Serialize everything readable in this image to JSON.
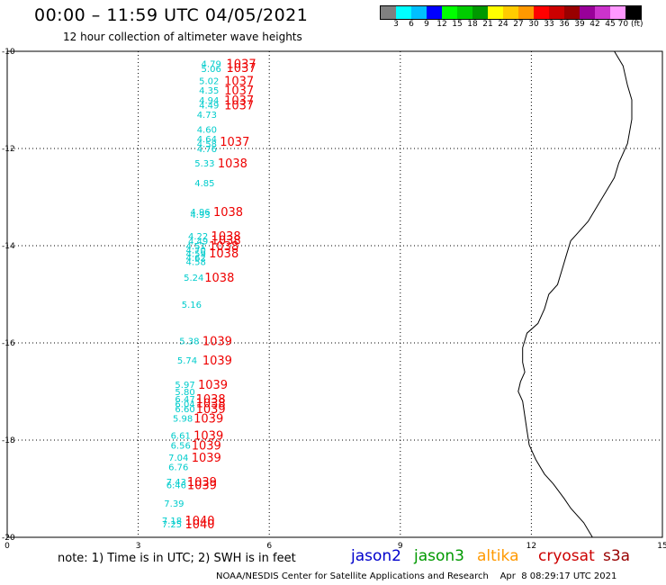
{
  "header": {
    "title": "00:00 – 11:59 UTC 04/05/2021",
    "subtitle": "12 hour collection of altimeter wave heights"
  },
  "colorbar": {
    "colors": [
      "#808080",
      "#00ffff",
      "#00bfff",
      "#0000ff",
      "#00ff00",
      "#00cc00",
      "#009900",
      "#ffff00",
      "#ffcc00",
      "#ff9900",
      "#ff0000",
      "#cc0000",
      "#990000",
      "#990099",
      "#cc33cc",
      "#ff99ff",
      "#000000"
    ],
    "labels": [
      "3",
      "6",
      "9",
      "12",
      "15",
      "18",
      "21",
      "24",
      "27",
      "30",
      "33",
      "36",
      "39",
      "42",
      "45",
      "70 (ft)"
    ]
  },
  "map": {
    "x_ticks": [
      "0",
      "3",
      "6",
      "9",
      "12",
      "15"
    ],
    "y_ticks": [
      "-10",
      "-12",
      "-14",
      "-16",
      "-18",
      "-20"
    ]
  },
  "chart_data": {
    "type": "scatter",
    "x_range": [
      0,
      15
    ],
    "y_range": [
      -20,
      -10
    ],
    "grid": true,
    "swh_labels": [
      {
        "x": 4.9,
        "y": -10.25,
        "text": "4.79"
      },
      {
        "x": 4.9,
        "y": -10.35,
        "text": "5.06"
      },
      {
        "x": 4.85,
        "y": -10.6,
        "text": "5.02"
      },
      {
        "x": 4.85,
        "y": -10.8,
        "text": "4.35"
      },
      {
        "x": 4.85,
        "y": -11.0,
        "text": "4.94"
      },
      {
        "x": 4.85,
        "y": -11.1,
        "text": "4.49"
      },
      {
        "x": 4.8,
        "y": -11.3,
        "text": "4.73"
      },
      {
        "x": 4.8,
        "y": -11.6,
        "text": "4.60"
      },
      {
        "x": 4.8,
        "y": -11.8,
        "text": "4.64"
      },
      {
        "x": 4.8,
        "y": -11.9,
        "text": "4.58"
      },
      {
        "x": 4.8,
        "y": -12.0,
        "text": "4.76"
      },
      {
        "x": 4.75,
        "y": -12.3,
        "text": "5.33"
      },
      {
        "x": 4.75,
        "y": -12.7,
        "text": "4.85"
      },
      {
        "x": 4.65,
        "y": -13.3,
        "text": "4.96"
      },
      {
        "x": 4.65,
        "y": -13.35,
        "text": "4.93"
      },
      {
        "x": 4.6,
        "y": -13.8,
        "text": "4.22"
      },
      {
        "x": 4.6,
        "y": -13.9,
        "text": "4.49"
      },
      {
        "x": 4.55,
        "y": -14.0,
        "text": "4.51"
      },
      {
        "x": 4.55,
        "y": -14.08,
        "text": "4.70"
      },
      {
        "x": 4.55,
        "y": -14.16,
        "text": "4.59"
      },
      {
        "x": 4.55,
        "y": -14.24,
        "text": "4.62"
      },
      {
        "x": 4.55,
        "y": -14.32,
        "text": "4.58"
      },
      {
        "x": 4.5,
        "y": -14.65,
        "text": "5.24"
      },
      {
        "x": 4.45,
        "y": -15.2,
        "text": "5.16"
      },
      {
        "x": 4.4,
        "y": -15.95,
        "text": "5.38"
      },
      {
        "x": 4.35,
        "y": -16.35,
        "text": "5.74"
      },
      {
        "x": 4.3,
        "y": -16.85,
        "text": "5.97"
      },
      {
        "x": 4.3,
        "y": -17.0,
        "text": "5.80"
      },
      {
        "x": 4.3,
        "y": -17.15,
        "text": "6.47"
      },
      {
        "x": 4.3,
        "y": -17.25,
        "text": "6.04"
      },
      {
        "x": 4.3,
        "y": -17.35,
        "text": "6.60"
      },
      {
        "x": 4.25,
        "y": -17.55,
        "text": "5.98"
      },
      {
        "x": 4.2,
        "y": -17.9,
        "text": "6.61"
      },
      {
        "x": 4.2,
        "y": -18.1,
        "text": "6.56"
      },
      {
        "x": 4.15,
        "y": -18.35,
        "text": "7.04"
      },
      {
        "x": 4.15,
        "y": -18.55,
        "text": "6.76"
      },
      {
        "x": 4.1,
        "y": -18.85,
        "text": "7.43"
      },
      {
        "x": 4.1,
        "y": -18.92,
        "text": "6.46"
      },
      {
        "x": 4.05,
        "y": -19.3,
        "text": "7.39"
      },
      {
        "x": 4.0,
        "y": -19.65,
        "text": "7.18"
      },
      {
        "x": 4.0,
        "y": -19.72,
        "text": "7.25"
      }
    ],
    "pressure_labels": [
      {
        "x": 5.7,
        "y": -10.25,
        "text": "1037"
      },
      {
        "x": 5.7,
        "y": -10.33,
        "text": "1037"
      },
      {
        "x": 5.65,
        "y": -10.6,
        "text": "1037"
      },
      {
        "x": 5.65,
        "y": -10.8,
        "text": "1037"
      },
      {
        "x": 5.65,
        "y": -11.0,
        "text": "1037"
      },
      {
        "x": 5.65,
        "y": -11.1,
        "text": "1037"
      },
      {
        "x": 5.55,
        "y": -11.85,
        "text": "1037"
      },
      {
        "x": 5.5,
        "y": -12.3,
        "text": "1038"
      },
      {
        "x": 5.4,
        "y": -13.3,
        "text": "1038"
      },
      {
        "x": 5.35,
        "y": -13.8,
        "text": "1038"
      },
      {
        "x": 5.35,
        "y": -13.88,
        "text": "1038"
      },
      {
        "x": 5.3,
        "y": -14.0,
        "text": "1038"
      },
      {
        "x": 5.3,
        "y": -14.15,
        "text": "1038"
      },
      {
        "x": 5.2,
        "y": -14.65,
        "text": "1038"
      },
      {
        "x": 5.15,
        "y": -15.95,
        "text": "1039"
      },
      {
        "x": 5.15,
        "y": -16.35,
        "text": "1039"
      },
      {
        "x": 5.05,
        "y": -16.85,
        "text": "1039"
      },
      {
        "x": 5.0,
        "y": -17.15,
        "text": "1038"
      },
      {
        "x": 5.0,
        "y": -17.23,
        "text": "1038"
      },
      {
        "x": 5.0,
        "y": -17.35,
        "text": "1039"
      },
      {
        "x": 4.95,
        "y": -17.55,
        "text": "1039"
      },
      {
        "x": 4.95,
        "y": -17.9,
        "text": "1039"
      },
      {
        "x": 4.9,
        "y": -18.1,
        "text": "1039"
      },
      {
        "x": 4.9,
        "y": -18.35,
        "text": "1039"
      },
      {
        "x": 4.8,
        "y": -18.85,
        "text": "1039"
      },
      {
        "x": 4.8,
        "y": -18.92,
        "text": "1039"
      },
      {
        "x": 4.75,
        "y": -19.65,
        "text": "1040"
      },
      {
        "x": 4.75,
        "y": -19.72,
        "text": "1040"
      }
    ],
    "coastline": [
      [
        13.9,
        -10.0
      ],
      [
        14.1,
        -10.3
      ],
      [
        14.2,
        -10.7
      ],
      [
        14.3,
        -11.0
      ],
      [
        14.3,
        -11.4
      ],
      [
        14.2,
        -11.9
      ],
      [
        14.0,
        -12.3
      ],
      [
        13.9,
        -12.6
      ],
      [
        13.7,
        -12.9
      ],
      [
        13.5,
        -13.2
      ],
      [
        13.3,
        -13.5
      ],
      [
        13.1,
        -13.7
      ],
      [
        12.9,
        -13.9
      ],
      [
        12.8,
        -14.2
      ],
      [
        12.7,
        -14.5
      ],
      [
        12.6,
        -14.8
      ],
      [
        12.4,
        -15.0
      ],
      [
        12.3,
        -15.3
      ],
      [
        12.15,
        -15.6
      ],
      [
        11.9,
        -15.8
      ],
      [
        11.8,
        -16.1
      ],
      [
        11.8,
        -16.4
      ],
      [
        11.85,
        -16.6
      ],
      [
        11.75,
        -16.8
      ],
      [
        11.7,
        -17.0
      ],
      [
        11.8,
        -17.2
      ],
      [
        11.85,
        -17.5
      ],
      [
        11.9,
        -17.8
      ],
      [
        11.95,
        -18.1
      ],
      [
        12.1,
        -18.4
      ],
      [
        12.3,
        -18.7
      ],
      [
        12.5,
        -18.9
      ],
      [
        12.75,
        -19.2
      ],
      [
        12.9,
        -19.4
      ],
      [
        13.2,
        -19.7
      ],
      [
        13.4,
        -20.0
      ]
    ]
  },
  "note": "note: 1) Time is in UTC; 2) SWH is in feet",
  "satellites": [
    {
      "name": "jason2",
      "color": "#0000cc"
    },
    {
      "name": "jason3",
      "color": "#009900"
    },
    {
      "name": "altika",
      "color": "#ff9900"
    },
    {
      "name": "cryosat",
      "color": "#cc0000"
    },
    {
      "name": "s3a",
      "color": "#990000"
    }
  ],
  "footer": "NOAA/NESDIS Center for Satellite Applications and Research    Apr  8 08:29:17 UTC 2021"
}
